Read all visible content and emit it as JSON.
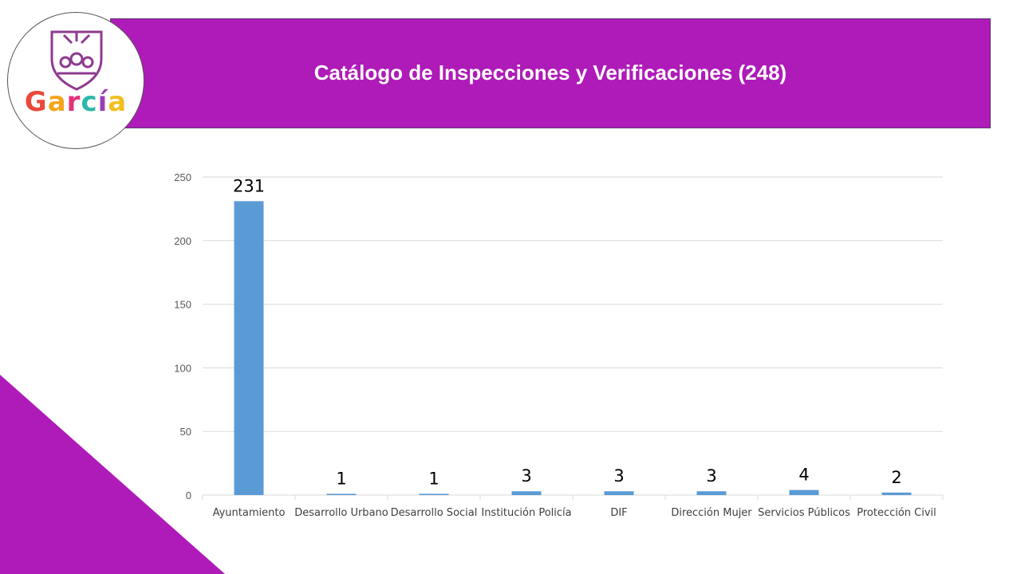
{
  "header": {
    "title": "Catálogo de Inspecciones y Verificaciones (248)",
    "banner_color": "#ae1bb8",
    "logo": {
      "wordmark": "García",
      "letter_colors": [
        "#e8493a",
        "#f2a51c",
        "#e5327a",
        "#2bb8a8",
        "#9b3fb5",
        "#f0c020"
      ],
      "shield_color": "#8e3a8f"
    }
  },
  "decoration": {
    "corner_color": "#ae1bb8"
  },
  "chart_data": {
    "type": "bar",
    "title": "",
    "xlabel": "",
    "ylabel": "",
    "categories": [
      "Ayuntamiento",
      "Desarrollo Urbano",
      "Desarrollo Social",
      "Institución Policía",
      "DIF",
      "Dirección Mujer",
      "Servicios Públicos",
      "Protección Civil"
    ],
    "series": [
      {
        "values": [
          231,
          1,
          1,
          3,
          3,
          3,
          4,
          2
        ]
      }
    ],
    "ylim": [
      0,
      250
    ],
    "yticks": [
      0,
      50,
      100,
      150,
      200,
      250
    ],
    "grid": true,
    "legend": "none",
    "data_labels": true,
    "bar_color": "#5b9bd5",
    "grid_color": "#d9d9d9"
  }
}
